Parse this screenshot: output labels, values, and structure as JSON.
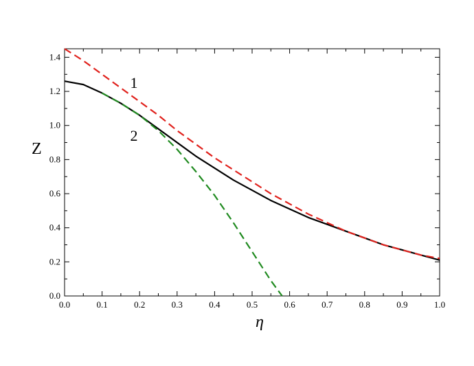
{
  "chart_data": {
    "type": "line",
    "xlabel": "η",
    "ylabel": "Z",
    "xlim": [
      0.0,
      1.0
    ],
    "ylim": [
      0.0,
      1.45
    ],
    "xticks": [
      "0.0",
      "0.1",
      "0.2",
      "0.3",
      "0.4",
      "0.5",
      "0.6",
      "0.7",
      "0.8",
      "0.9",
      "1.0"
    ],
    "yticks": [
      "0.0",
      "0.2",
      "0.4",
      "0.6",
      "0.8",
      "1.0",
      "1.2",
      "1.4"
    ],
    "grid": false,
    "series": [
      {
        "id": "exact",
        "color": "#000000",
        "style": "solid",
        "x": [
          0.0,
          0.05,
          0.1,
          0.15,
          0.2,
          0.25,
          0.3,
          0.35,
          0.4,
          0.45,
          0.5,
          0.55,
          0.6,
          0.65,
          0.7,
          0.75,
          0.8,
          0.85,
          0.9,
          0.95,
          1.0
        ],
        "y": [
          1.26,
          1.24,
          1.19,
          1.13,
          1.06,
          0.98,
          0.9,
          0.82,
          0.75,
          0.68,
          0.62,
          0.56,
          0.51,
          0.46,
          0.42,
          0.38,
          0.34,
          0.3,
          0.27,
          0.24,
          0.21
        ]
      },
      {
        "id": "approx-1",
        "label": "1",
        "color": "#e0211c",
        "style": "dashed",
        "x": [
          0.0,
          0.05,
          0.1,
          0.15,
          0.2,
          0.25,
          0.3,
          0.35,
          0.4,
          0.45,
          0.5,
          0.55,
          0.6,
          0.65,
          0.7,
          0.75,
          0.8,
          0.85,
          0.9,
          0.95,
          1.0
        ],
        "y": [
          1.45,
          1.38,
          1.3,
          1.22,
          1.14,
          1.06,
          0.97,
          0.89,
          0.81,
          0.74,
          0.67,
          0.6,
          0.54,
          0.48,
          0.43,
          0.38,
          0.34,
          0.3,
          0.27,
          0.24,
          0.22
        ]
      },
      {
        "id": "approx-2",
        "label": "2",
        "color": "#1f8a1f",
        "style": "dashed",
        "x": [
          0.1,
          0.15,
          0.2,
          0.25,
          0.3,
          0.35,
          0.4,
          0.45,
          0.5,
          0.55,
          0.58
        ],
        "y": [
          1.19,
          1.13,
          1.06,
          0.97,
          0.86,
          0.73,
          0.59,
          0.43,
          0.26,
          0.09,
          0.0
        ]
      }
    ],
    "annotations": [
      {
        "text": "1",
        "x": 0.185,
        "y": 1.22
      },
      {
        "text": "2",
        "x": 0.185,
        "y": 0.91
      }
    ]
  }
}
